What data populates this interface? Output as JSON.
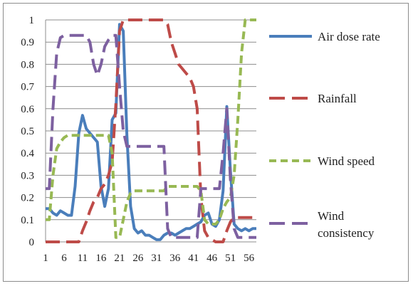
{
  "chart_data": {
    "type": "line",
    "title": "",
    "xlabel": "",
    "ylabel": "",
    "ylim": [
      0,
      1
    ],
    "yticks": [
      "0",
      "0.1",
      "0.2",
      "0.3",
      "0.4",
      "0.5",
      "0.6",
      "0.7",
      "0.8",
      "0.9",
      "1"
    ],
    "xlim": [
      1,
      58
    ],
    "xticks": [
      "1",
      "6",
      "11",
      "16",
      "21",
      "26",
      "31",
      "36",
      "41",
      "46",
      "51",
      "56"
    ],
    "grid": "horizontal",
    "legend_position": "right",
    "series": [
      {
        "name": "Air dose rate",
        "color": "#4a7ebb",
        "dash": "solid",
        "values": [
          0.15,
          0.15,
          0.13,
          0.12,
          0.14,
          0.13,
          0.12,
          0.12,
          0.25,
          0.49,
          0.57,
          0.51,
          0.49,
          0.47,
          0.45,
          0.25,
          0.16,
          0.24,
          0.55,
          0.58,
          0.98,
          0.95,
          0.48,
          0.16,
          0.06,
          0.04,
          0.05,
          0.03,
          0.03,
          0.02,
          0.01,
          0.01,
          0.03,
          0.04,
          0.04,
          0.03,
          0.04,
          0.05,
          0.06,
          0.06,
          0.07,
          0.08,
          0.09,
          0.12,
          0.13,
          0.08,
          0.07,
          0.1,
          0.23,
          0.61,
          0.32,
          0.08,
          0.06,
          0.05,
          0.06,
          0.05,
          0.06,
          0.06
        ]
      },
      {
        "name": "Rainfall",
        "color": "#be4b48",
        "dash": "longdash",
        "values": [
          0,
          0,
          0,
          0,
          0,
          0,
          0,
          0,
          0,
          0,
          0.05,
          0.09,
          0.14,
          0.18,
          0.2,
          0.24,
          0.26,
          0.3,
          0.36,
          0.62,
          0.95,
          1,
          1,
          1,
          1,
          1,
          1,
          1,
          1,
          1,
          1,
          1,
          1,
          0.98,
          0.9,
          0.85,
          0.8,
          0.78,
          0.76,
          0.74,
          0.7,
          0.6,
          0.2,
          0.05,
          0.02,
          0.01,
          0,
          0,
          0,
          0.05,
          0.09,
          0.11,
          0.11,
          0.11,
          0.11,
          0.11,
          0.11,
          0.11
        ]
      },
      {
        "name": "Wind speed",
        "color": "#98b954",
        "dash": "dash",
        "values": [
          0.1,
          0.1,
          0.3,
          0.42,
          0.45,
          0.47,
          0.48,
          0.48,
          0.48,
          0.48,
          0.48,
          0.48,
          0.48,
          0.48,
          0.48,
          0.48,
          0.48,
          0.48,
          0.4,
          0.02,
          0.02,
          0.1,
          0.18,
          0.22,
          0.23,
          0.23,
          0.23,
          0.23,
          0.23,
          0.23,
          0.23,
          0.23,
          0.23,
          0.25,
          0.25,
          0.25,
          0.25,
          0.25,
          0.25,
          0.25,
          0.25,
          0.25,
          0.23,
          0.1,
          0.08,
          0.08,
          0.08,
          0.1,
          0.15,
          0.18,
          0.2,
          0.3,
          0.55,
          0.85,
          1,
          1,
          1,
          1
        ]
      },
      {
        "name": "Wind consistency",
        "color": "#7d60a0",
        "dash": "longdash",
        "values": [
          0.24,
          0.24,
          0.6,
          0.85,
          0.92,
          0.93,
          0.93,
          0.93,
          0.93,
          0.93,
          0.93,
          0.93,
          0.9,
          0.8,
          0.75,
          0.8,
          0.88,
          0.91,
          0.93,
          0.93,
          0.7,
          0.5,
          0.43,
          0.43,
          0.43,
          0.43,
          0.43,
          0.43,
          0.43,
          0.43,
          0.43,
          0.43,
          0.43,
          0.06,
          0.02,
          0.02,
          0.02,
          0.02,
          0.02,
          0.02,
          0.02,
          0.02,
          0.24,
          0.24,
          0.24,
          0.24,
          0.24,
          0.24,
          0.4,
          0.6,
          0.28,
          0.06,
          0.02,
          0.02,
          0.02,
          0.02,
          0.02,
          0.02
        ]
      }
    ],
    "legend": [
      "Air dose rate",
      "Rainfall",
      "Wind speed",
      "Wind consistency"
    ],
    "legend_lines": [
      [
        "Air dose rate"
      ],
      [
        "Rainfall"
      ],
      [
        "Wind speed"
      ],
      [
        "Wind",
        "consistency"
      ]
    ]
  }
}
